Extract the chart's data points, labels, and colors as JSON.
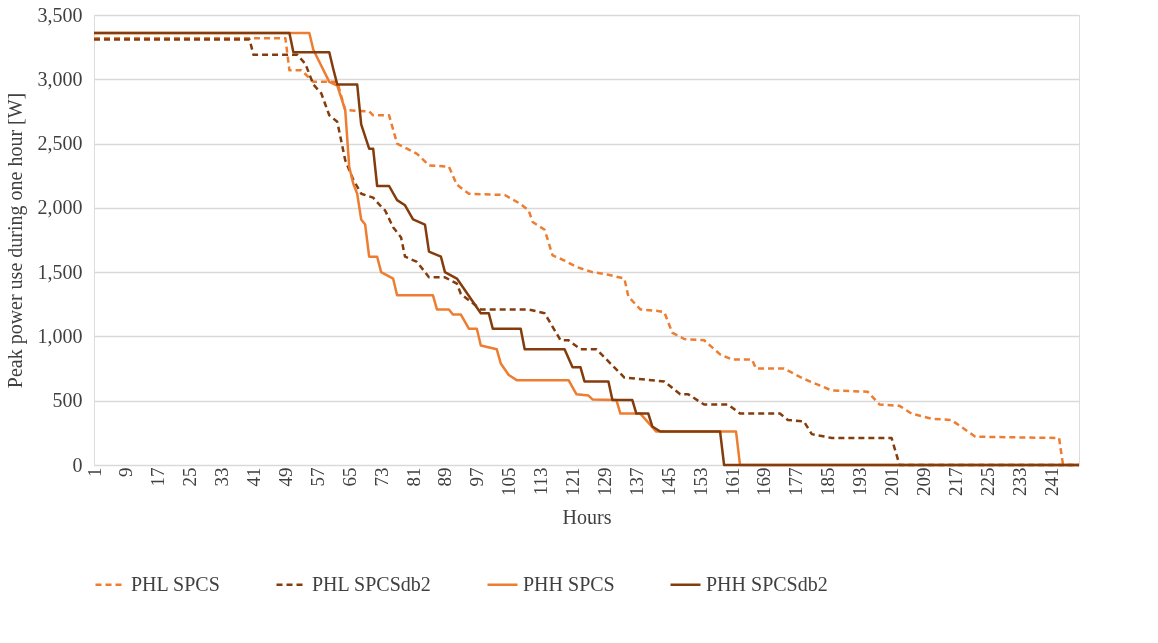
{
  "chart_data": {
    "type": "line",
    "xlabel": "Hours",
    "ylabel": "Peak power use during one hour [W]",
    "xlim": [
      1,
      248
    ],
    "xticks": [
      1,
      9,
      17,
      25,
      33,
      41,
      49,
      57,
      65,
      73,
      81,
      89,
      97,
      105,
      113,
      121,
      129,
      137,
      145,
      153,
      161,
      169,
      177,
      185,
      193,
      201,
      209,
      217,
      225,
      233,
      241
    ],
    "ylim": [
      0,
      3500
    ],
    "yticks": [
      0,
      500,
      {
        "value": 1000,
        "label": "1,000"
      },
      {
        "value": 1500,
        "label": "1,500"
      },
      {
        "value": 2000,
        "label": "2,000"
      },
      {
        "value": 2500,
        "label": "2,500"
      },
      {
        "value": 3000,
        "label": "3,000"
      },
      {
        "value": 3500,
        "label": "3,500"
      }
    ],
    "grid": "y",
    "legend": "bottom",
    "marker": "none",
    "series": [
      {
        "name": "PHL SPCS",
        "color": "#ed7d31",
        "line_style": "dashed",
        "x": [
          1,
          49,
          50,
          53,
          56,
          62,
          64,
          70,
          71,
          75,
          77,
          82,
          85,
          90,
          92,
          95,
          104,
          108,
          110,
          111,
          114,
          116,
          119,
          122,
          126,
          130,
          134,
          135,
          138,
          142,
          144,
          146,
          149,
          154,
          158,
          161,
          166,
          167,
          174,
          179,
          186,
          195,
          198,
          203,
          206,
          211,
          216,
          222,
          243,
          244,
          248
        ],
        "values": [
          3320,
          3320,
          3070,
          3070,
          2980,
          2980,
          2760,
          2750,
          2720,
          2720,
          2500,
          2420,
          2330,
          2320,
          2180,
          2110,
          2100,
          2030,
          1980,
          1890,
          1830,
          1630,
          1590,
          1540,
          1500,
          1480,
          1450,
          1310,
          1210,
          1200,
          1190,
          1030,
          980,
          970,
          860,
          820,
          820,
          750,
          750,
          670,
          580,
          570,
          470,
          460,
          400,
          360,
          350,
          220,
          210,
          0,
          0
        ]
      },
      {
        "name": "PHL SPCSdb2",
        "color": "#843c0c",
        "line_style": "dashed",
        "x": [
          1,
          40,
          41,
          52,
          54,
          56,
          58,
          60,
          62,
          64,
          66,
          68,
          71,
          73,
          74,
          76,
          78,
          79,
          82,
          85,
          89,
          92,
          93,
          98,
          110,
          114,
          118,
          120,
          123,
          127,
          134,
          144,
          148,
          150,
          154,
          160,
          163,
          173,
          175,
          179,
          181,
          186,
          201,
          203,
          248
        ],
        "values": [
          3310,
          3310,
          3190,
          3190,
          3120,
          2960,
          2890,
          2720,
          2670,
          2370,
          2220,
          2110,
          2080,
          2010,
          1980,
          1850,
          1770,
          1620,
          1580,
          1460,
          1460,
          1410,
          1330,
          1210,
          1210,
          1180,
          970,
          970,
          900,
          900,
          680,
          650,
          550,
          550,
          470,
          470,
          400,
          400,
          350,
          340,
          240,
          210,
          210,
          0,
          0
        ]
      },
      {
        "name": "PHH SPCS",
        "color": "#ed7d31",
        "line_style": "solid",
        "x": [
          1,
          55,
          56,
          60,
          62,
          64,
          65,
          66,
          67,
          68,
          69,
          70,
          72,
          73,
          76,
          77,
          86,
          87,
          90,
          91,
          93,
          95,
          97,
          98,
          102,
          103,
          105,
          107,
          120,
          122,
          125,
          126,
          132,
          133,
          138,
          142,
          162,
          163,
          248
        ],
        "values": [
          3360,
          3360,
          3230,
          2980,
          2950,
          2760,
          2320,
          2190,
          2110,
          1910,
          1870,
          1620,
          1620,
          1500,
          1450,
          1320,
          1320,
          1210,
          1210,
          1170,
          1170,
          1060,
          1060,
          930,
          900,
          790,
          700,
          660,
          660,
          550,
          540,
          510,
          505,
          400,
          400,
          260,
          260,
          0,
          0
        ]
      },
      {
        "name": "PHH SPCSdb2",
        "color": "#843c0c",
        "line_style": "solid",
        "x": [
          1,
          50,
          51,
          60,
          61,
          62,
          67,
          68,
          70,
          71,
          72,
          75,
          77,
          79,
          81,
          84,
          85,
          88,
          89,
          92,
          98,
          100,
          101,
          108,
          109,
          119,
          121,
          123,
          124,
          130,
          131,
          136,
          137,
          140,
          141,
          143,
          158,
          159,
          248
        ],
        "values": [
          3360,
          3360,
          3210,
          3210,
          3080,
          2960,
          2960,
          2650,
          2460,
          2460,
          2170,
          2170,
          2060,
          2020,
          1910,
          1870,
          1660,
          1620,
          1500,
          1450,
          1180,
          1180,
          1060,
          1060,
          900,
          900,
          760,
          760,
          650,
          650,
          505,
          505,
          400,
          400,
          300,
          260,
          260,
          0,
          0
        ]
      }
    ]
  }
}
